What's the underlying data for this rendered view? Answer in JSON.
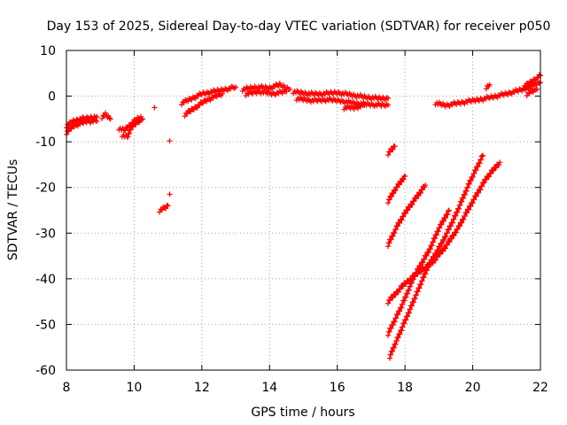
{
  "chart_data": {
    "type": "scatter",
    "title": "Day 153 of 2025, Sidereal Day-to-day VTEC variation (SDTVAR) for receiver p050",
    "xlabel": "GPS time / hours",
    "ylabel": "SDTVAR / TECUs",
    "xlim": [
      8,
      22
    ],
    "ylim": [
      -60,
      10
    ],
    "xticks": [
      8,
      10,
      12,
      14,
      16,
      18,
      20,
      22
    ],
    "yticks": [
      -60,
      -50,
      -40,
      -30,
      -20,
      -10,
      0,
      10
    ],
    "xtick_labels": [
      "8",
      "10",
      "12",
      "14",
      "16",
      "18",
      "20",
      "22"
    ],
    "ytick_labels": [
      "-60",
      "-50",
      "-40",
      "-30",
      "-20",
      "-10",
      "0",
      "10"
    ],
    "grid": true,
    "legend": "none",
    "marker": "plus",
    "color": "#ff0000",
    "segments": [
      {
        "x": [
          8.0,
          8.2,
          8.4,
          8.6,
          8.9
        ],
        "y": [
          -6.5,
          -5.5,
          -5.0,
          -4.8,
          -4.5
        ]
      },
      {
        "x": [
          8.0,
          8.2,
          8.4,
          8.6,
          8.9
        ],
        "y": [
          -8.0,
          -6.5,
          -6.0,
          -5.5,
          -5.5
        ]
      },
      {
        "x": [
          9.05,
          9.15,
          9.3
        ],
        "y": [
          -4.5,
          -4.0,
          -5.0
        ]
      },
      {
        "x": [
          9.55,
          9.7,
          9.85,
          10.0,
          10.2
        ],
        "y": [
          -7.0,
          -7.5,
          -6.5,
          -5.5,
          -4.5
        ]
      },
      {
        "x": [
          9.65,
          9.8,
          9.9,
          10.05,
          10.25
        ],
        "y": [
          -8.5,
          -9.0,
          -7.0,
          -6.0,
          -5.0
        ]
      },
      {
        "x": [
          10.6
        ],
        "y": [
          -2.5
        ]
      },
      {
        "x": [
          10.75,
          10.9,
          11.0
        ],
        "y": [
          -25.0,
          -24.5,
          -24.0
        ]
      },
      {
        "x": [
          11.05
        ],
        "y": [
          -21.5
        ]
      },
      {
        "x": [
          11.05
        ],
        "y": [
          -9.8
        ]
      },
      {
        "x": [
          11.4,
          11.7,
          12.0,
          12.5,
          13.0
        ],
        "y": [
          -1.5,
          -0.5,
          0.5,
          1.2,
          2.0
        ]
      },
      {
        "x": [
          11.5,
          11.8,
          12.1,
          12.6
        ],
        "y": [
          -4.0,
          -2.5,
          -1.0,
          0.5
        ]
      },
      {
        "x": [
          13.2,
          13.6,
          14.0,
          14.3,
          14.6
        ],
        "y": [
          1.5,
          2.0,
          1.8,
          2.5,
          1.5
        ]
      },
      {
        "x": [
          13.3,
          13.7,
          14.1,
          14.5
        ],
        "y": [
          0.5,
          1.0,
          0.5,
          1.0
        ]
      },
      {
        "x": [
          14.7,
          15.2,
          15.6,
          16.0,
          16.4,
          16.8,
          17.2,
          17.5
        ],
        "y": [
          1.0,
          0.5,
          0.5,
          0.8,
          0.3,
          -0.2,
          -0.5,
          -0.5
        ]
      },
      {
        "x": [
          14.8,
          15.3,
          15.7,
          16.1,
          16.5,
          16.9,
          17.3,
          17.5
        ],
        "y": [
          -0.5,
          -1.0,
          -0.8,
          -1.0,
          -1.5,
          -1.8,
          -2.0,
          -2.0
        ]
      },
      {
        "x": [
          16.2,
          16.5,
          16.8
        ],
        "y": [
          -2.5,
          -2.5,
          -2.0
        ]
      },
      {
        "x": [
          18.9,
          19.2,
          19.6,
          20.0,
          20.5,
          21.0,
          21.5,
          22.0
        ],
        "y": [
          -1.5,
          -2.0,
          -1.5,
          -1.0,
          -0.3,
          0.5,
          1.5,
          3.0
        ]
      },
      {
        "x": [
          21.5,
          21.8,
          22.0
        ],
        "y": [
          2.0,
          3.5,
          4.5
        ]
      },
      {
        "x": [
          21.6,
          21.9
        ],
        "y": [
          0.5,
          1.5
        ]
      },
      {
        "x": [
          20.4,
          20.5
        ],
        "y": [
          2.0,
          2.5
        ]
      },
      {
        "x": [
          17.5,
          17.7
        ],
        "y": [
          -12.5,
          -11.0
        ]
      },
      {
        "x": [
          17.5,
          17.7,
          17.9,
          18.0
        ],
        "y": [
          -23.0,
          -20.5,
          -18.5,
          -17.5
        ]
      },
      {
        "x": [
          17.5,
          17.8,
          18.1,
          18.4,
          18.6
        ],
        "y": [
          -32.5,
          -28.0,
          -24.5,
          -21.5,
          -19.5
        ]
      },
      {
        "x": [
          17.5,
          18.0,
          18.5,
          18.8,
          19.2,
          19.6,
          20.0,
          20.4,
          20.8
        ],
        "y": [
          -45.0,
          -41.0,
          -38.0,
          -36.5,
          -33.0,
          -28.5,
          -23.0,
          -18.0,
          -14.5
        ]
      },
      {
        "x": [
          17.5,
          17.9,
          18.3,
          18.7,
          19.0,
          19.3
        ],
        "y": [
          -52.0,
          -46.0,
          -39.0,
          -34.0,
          -29.0,
          -25.0
        ]
      },
      {
        "x": [
          17.55,
          17.9,
          18.3,
          18.7,
          19.1,
          19.5,
          19.9,
          20.3
        ],
        "y": [
          -57.0,
          -51.0,
          -44.0,
          -37.0,
          -32.0,
          -26.0,
          -19.0,
          -13.0
        ]
      }
    ]
  }
}
